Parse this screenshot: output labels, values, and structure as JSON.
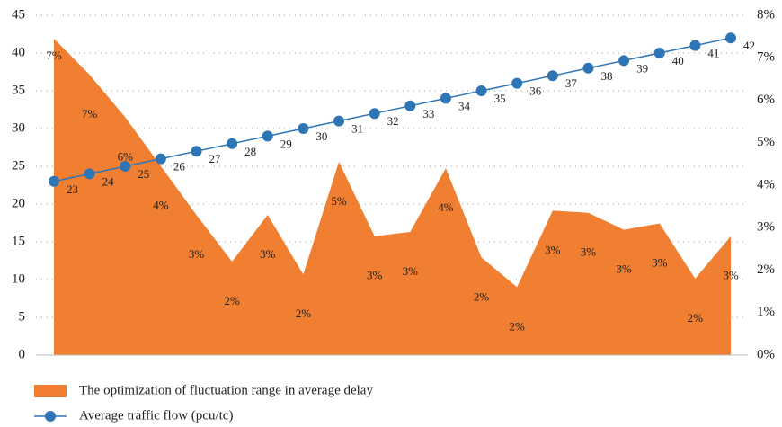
{
  "chart_data": {
    "type": "area",
    "categories": [
      null,
      null,
      null,
      null,
      null,
      null,
      null,
      null,
      null,
      null,
      null,
      null,
      null,
      null,
      null,
      null,
      null,
      null,
      null,
      null
    ],
    "series": [
      {
        "name": "The optimization of fluctuation range in average delay",
        "type": "area",
        "axis": "y2",
        "color": "#f07f32",
        "values": [
          7.45,
          6.6,
          5.6,
          4.45,
          3.3,
          2.2,
          3.3,
          1.9,
          4.55,
          2.8,
          2.9,
          4.4,
          2.3,
          1.6,
          3.4,
          3.35,
          2.95,
          3.1,
          1.8,
          2.8
        ],
        "value_labels": [
          "7%",
          "7%",
          "6%",
          "4%",
          "3%",
          "2%",
          "3%",
          "2%",
          "5%",
          "3%",
          "3%",
          "4%",
          "2%",
          "2%",
          "3%",
          "3%",
          "3%",
          "3%",
          "2%",
          "3%"
        ]
      },
      {
        "name": "Average traffic flow (pcu/tc)",
        "type": "line",
        "color": "#2e75b6",
        "values": [
          23,
          24,
          25,
          26,
          27,
          28,
          29,
          30,
          31,
          32,
          33,
          34,
          35,
          36,
          37,
          38,
          39,
          40,
          41,
          42
        ]
      }
    ],
    "ylim": [
      0,
      45
    ],
    "yticks": [
      0,
      5,
      10,
      15,
      20,
      25,
      30,
      35,
      40,
      45
    ],
    "y2lim": [
      0,
      8
    ],
    "y2ticks": [
      {
        "value": 0,
        "label": "0%"
      },
      {
        "value": 1,
        "label": "1%"
      },
      {
        "value": 2,
        "label": "2%"
      },
      {
        "value": 3,
        "label": "3%"
      },
      {
        "value": 4,
        "label": "4%"
      },
      {
        "value": 5,
        "label": "5%"
      },
      {
        "value": 6,
        "label": "6%"
      },
      {
        "value": 7,
        "label": "7%"
      },
      {
        "value": 8,
        "label": "8%"
      }
    ],
    "grid": true,
    "legend": "bottom"
  }
}
